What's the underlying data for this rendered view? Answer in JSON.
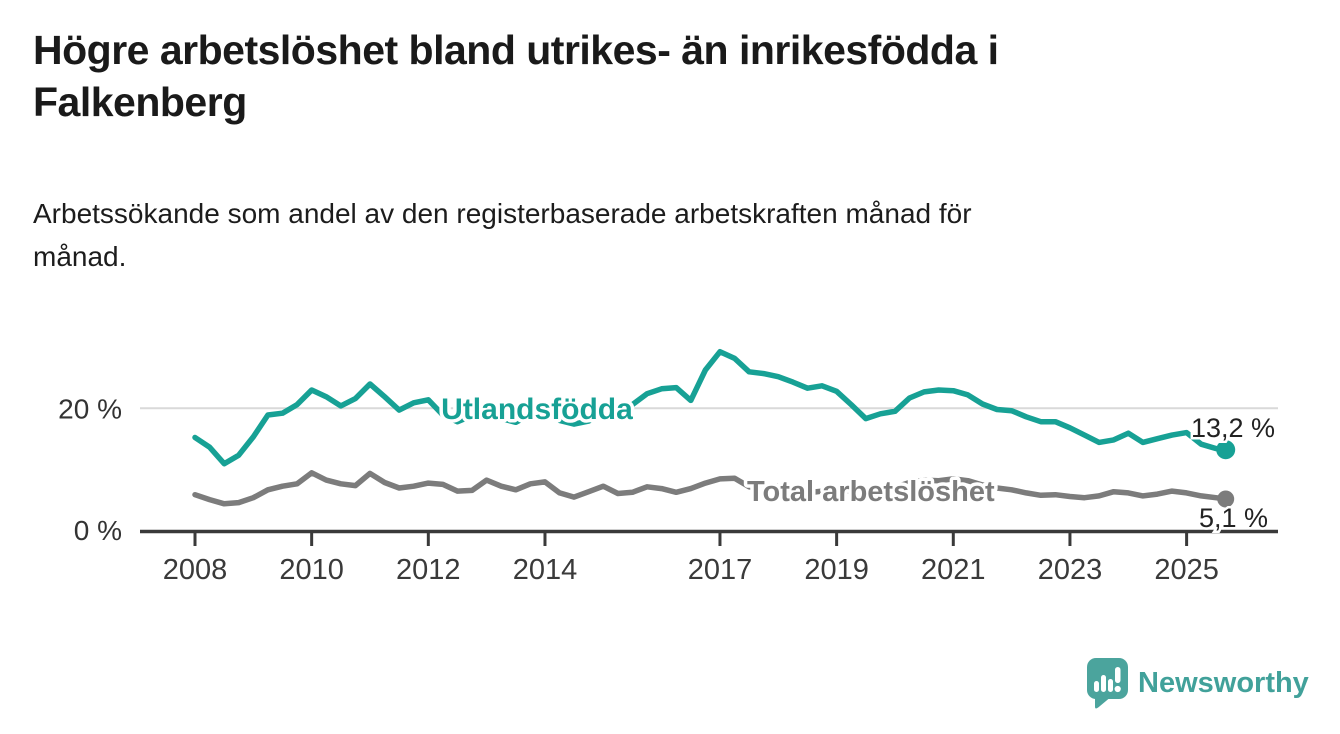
{
  "chart_data": {
    "type": "line",
    "title": "Högre arbetslöshet bland utrikes- än inrikesfödda i\nFalkenberg",
    "subtitle": "Arbetssökande som andel av den registerbaserade arbetskraften månad för\nmånad.",
    "y_unit": "%",
    "x_ticks": [
      2008,
      2010,
      2012,
      2014,
      2017,
      2019,
      2021,
      2023,
      2025
    ],
    "y_ticks": [
      {
        "value": 20,
        "label": "20 %"
      },
      {
        "value": 0,
        "label": "0 %"
      }
    ],
    "ylim": [
      0,
      30
    ],
    "x_range_years": [
      2008.0,
      2025.67
    ],
    "grid": "single horizontal gridline at 20 %, x axis at 0 %",
    "legend_position": "inline labels on lines, value labels at line ends",
    "x": [
      2008.0,
      2008.25,
      2008.5,
      2008.75,
      2009.0,
      2009.25,
      2009.5,
      2009.75,
      2010.0,
      2010.25,
      2010.5,
      2010.75,
      2011.0,
      2011.25,
      2011.5,
      2011.75,
      2012.0,
      2012.25,
      2012.5,
      2012.75,
      2013.0,
      2013.25,
      2013.5,
      2013.75,
      2014.0,
      2014.25,
      2014.5,
      2014.75,
      2015.0,
      2015.25,
      2015.5,
      2015.75,
      2016.0,
      2016.25,
      2016.5,
      2016.75,
      2017.0,
      2017.25,
      2017.5,
      2017.75,
      2018.0,
      2018.25,
      2018.5,
      2018.75,
      2019.0,
      2019.25,
      2019.5,
      2019.75,
      2020.0,
      2020.25,
      2020.5,
      2020.75,
      2021.0,
      2021.25,
      2021.5,
      2021.75,
      2022.0,
      2022.25,
      2022.5,
      2022.75,
      2023.0,
      2023.25,
      2023.5,
      2023.75,
      2024.0,
      2024.25,
      2024.5,
      2024.75,
      2025.0,
      2025.25,
      2025.5,
      2025.67
    ],
    "series": [
      {
        "name": "Utlandsfödda",
        "color": "#17a195",
        "end_label": "13,2 %",
        "last_value": 13.2,
        "values": [
          15.2,
          13.6,
          10.9,
          12.3,
          15.3,
          18.9,
          19.2,
          20.6,
          23.0,
          21.9,
          20.4,
          21.6,
          24.0,
          21.9,
          19.7,
          20.9,
          21.4,
          18.9,
          17.8,
          18.8,
          20.0,
          18.3,
          17.7,
          19.0,
          20.2,
          18.0,
          17.4,
          17.9,
          19.5,
          19.2,
          20.6,
          22.4,
          23.2,
          23.4,
          21.3,
          26.3,
          29.3,
          28.2,
          26.0,
          25.7,
          25.2,
          24.3,
          23.3,
          23.7,
          22.8,
          20.6,
          18.3,
          19.1,
          19.5,
          21.7,
          22.7,
          23.0,
          22.9,
          22.2,
          20.7,
          19.8,
          19.6,
          18.6,
          17.8,
          17.8,
          16.8,
          15.6,
          14.4,
          14.8,
          15.9,
          14.4,
          15.0,
          15.6,
          16.0,
          14.1,
          13.4,
          13.2
        ]
      },
      {
        "name": "Total arbetslöshet",
        "color": "#7c7c7c",
        "end_label": "5,1 %",
        "last_value": 5.1,
        "values": [
          5.8,
          5.0,
          4.3,
          4.5,
          5.3,
          6.6,
          7.2,
          7.6,
          9.4,
          8.2,
          7.6,
          7.3,
          9.3,
          7.8,
          6.9,
          7.2,
          7.7,
          7.5,
          6.4,
          6.5,
          8.2,
          7.2,
          6.6,
          7.6,
          7.9,
          6.1,
          5.4,
          6.3,
          7.2,
          6.0,
          6.2,
          7.1,
          6.8,
          6.2,
          6.8,
          7.7,
          8.4,
          8.5,
          7.1,
          6.7,
          7.2,
          6.6,
          6.1,
          6.4,
          6.9,
          6.3,
          6.0,
          6.4,
          7.0,
          7.8,
          8.2,
          8.1,
          8.4,
          8.1,
          7.4,
          6.9,
          6.6,
          6.1,
          5.7,
          5.8,
          5.5,
          5.3,
          5.6,
          6.3,
          6.1,
          5.6,
          5.9,
          6.4,
          6.1,
          5.6,
          5.3,
          5.1
        ]
      }
    ]
  },
  "footer": {
    "brand": "Newsworthy"
  }
}
